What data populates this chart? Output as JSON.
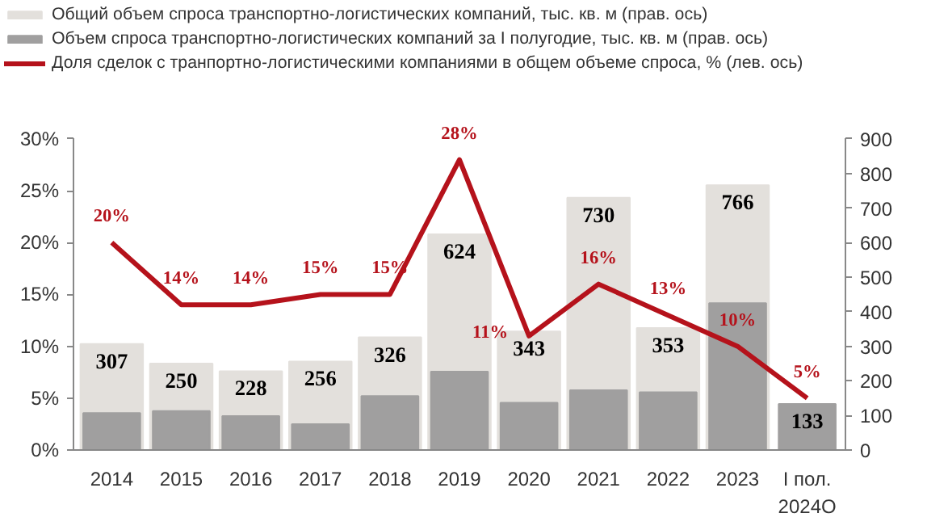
{
  "chart_data": {
    "type": "bar",
    "categories": [
      "2014",
      "2015",
      "2016",
      "2017",
      "2018",
      "2019",
      "2020",
      "2021",
      "2022",
      "2023",
      "I пол.\n2024О"
    ],
    "series": [
      {
        "name": "Общий объем спроса транспортно-логистических компаний, тыс. кв. м (прав. ось)",
        "axis": "y2",
        "color": "#e3e0dc",
        "values": [
          307,
          250,
          228,
          256,
          326,
          624,
          343,
          730,
          353,
          766,
          null
        ],
        "value_labels": [
          "307",
          "250",
          "228",
          "256",
          "326",
          "624",
          "343",
          "730",
          "353",
          "766",
          null
        ]
      },
      {
        "name": "Объем спроса транспортно-логистических компаний за I полугодие, тыс. кв. м (прав. ось)",
        "axis": "y2",
        "color": "#a09f9f",
        "values": [
          107,
          113,
          98,
          75,
          156,
          227,
          137,
          173,
          167,
          425,
          133
        ],
        "value_labels": [
          null,
          null,
          null,
          null,
          null,
          null,
          null,
          null,
          null,
          null,
          "133"
        ]
      },
      {
        "name": "Доля сделок с транпортно-логистическими компаниями в общем объеме спроса, % (лев. ось)",
        "type": "line",
        "color": "#b5121b",
        "values": [
          20,
          14,
          14,
          15,
          15,
          28,
          11,
          16,
          13,
          10,
          5
        ],
        "value_labels": [
          "20%",
          "14%",
          "14%",
          "15%",
          "15%",
          "28%",
          "11%",
          "16%",
          "13%",
          "10%",
          "5%"
        ]
      }
    ],
    "ylim": [
      0,
      30
    ],
    "yticks": [
      {
        "value": 0,
        "label": "0%"
      },
      {
        "value": 5,
        "label": "5%"
      },
      {
        "value": 10,
        "label": "10%"
      },
      {
        "value": 15,
        "label": "15%"
      },
      {
        "value": 20,
        "label": "20%"
      },
      {
        "value": 25,
        "label": "25%"
      },
      {
        "value": 30,
        "label": "30%"
      }
    ],
    "y2lim": [
      0,
      900
    ],
    "y2ticks": [
      0,
      100,
      200,
      300,
      400,
      500,
      600,
      700,
      800,
      900
    ],
    "legend": "top",
    "grid": false,
    "marker": "none",
    "line_style": "solid"
  }
}
